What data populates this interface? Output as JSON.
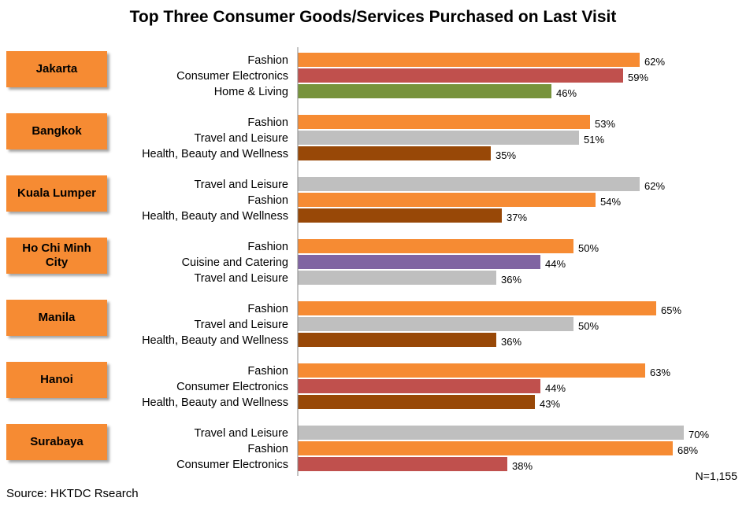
{
  "title": "Top Three Consumer Goods/Services Purchased on Last Visit",
  "note": "N=1,155",
  "source": "Source: HKTDC Rsearch",
  "colors": {
    "Fashion": "#f68b33",
    "Consumer Electronics": "#c0504d",
    "Home & Living": "#77933c",
    "Travel and Leisure": "#bfbfbf",
    "Health, Beauty and Wellness": "#984807",
    "Cuisine and Catering": "#8064a2"
  },
  "chart_data": {
    "type": "bar",
    "orientation": "horizontal",
    "title": "Top Three Consumer Goods/Services Purchased on Last Visit",
    "value_suffix": "%",
    "xlim": [
      0,
      70
    ],
    "groups": [
      {
        "city": "Jakarta",
        "items": [
          {
            "category": "Fashion",
            "value": 62
          },
          {
            "category": "Consumer Electronics",
            "value": 59
          },
          {
            "category": "Home & Living",
            "value": 46
          }
        ]
      },
      {
        "city": "Bangkok",
        "items": [
          {
            "category": "Fashion",
            "value": 53
          },
          {
            "category": "Travel and Leisure",
            "value": 51
          },
          {
            "category": "Health, Beauty and Wellness",
            "value": 35
          }
        ]
      },
      {
        "city": "Kuala Lumper",
        "items": [
          {
            "category": "Travel and Leisure",
            "value": 62
          },
          {
            "category": "Fashion",
            "value": 54
          },
          {
            "category": "Health, Beauty and Wellness",
            "value": 37
          }
        ]
      },
      {
        "city": "Ho Chi Minh City",
        "items": [
          {
            "category": "Fashion",
            "value": 50
          },
          {
            "category": "Cuisine and Catering",
            "value": 44
          },
          {
            "category": "Travel and Leisure",
            "value": 36
          }
        ]
      },
      {
        "city": "Manila",
        "items": [
          {
            "category": "Fashion",
            "value": 65
          },
          {
            "category": "Travel and Leisure",
            "value": 50
          },
          {
            "category": "Health, Beauty and Wellness",
            "value": 36
          }
        ]
      },
      {
        "city": "Hanoi",
        "items": [
          {
            "category": "Fashion",
            "value": 63
          },
          {
            "category": "Consumer Electronics",
            "value": 44
          },
          {
            "category": "Health, Beauty and Wellness",
            "value": 43
          }
        ]
      },
      {
        "city": "Surabaya",
        "items": [
          {
            "category": "Travel and Leisure",
            "value": 70
          },
          {
            "category": "Fashion",
            "value": 68
          },
          {
            "category": "Consumer Electronics",
            "value": 38
          }
        ]
      }
    ]
  }
}
